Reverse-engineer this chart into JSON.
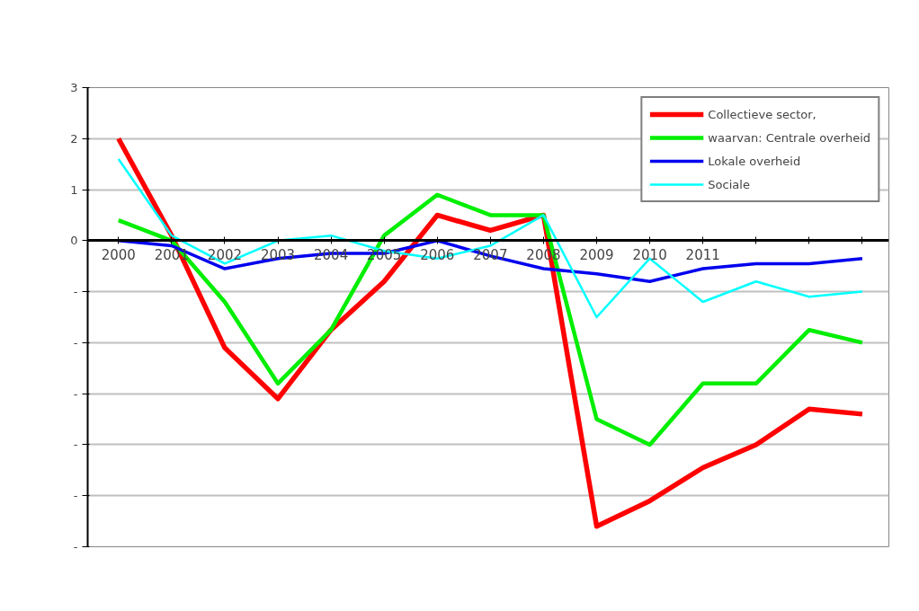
{
  "chart_data": {
    "type": "line",
    "categories": [
      "2000",
      "2001",
      "2002",
      "2003",
      "2004",
      "2005",
      "2006",
      "2007",
      "2008",
      "2009",
      "2010",
      "2011",
      null,
      null,
      null
    ],
    "series": [
      {
        "name": "Collectieve sector,",
        "color": "#ff0000",
        "values": [
          2.0,
          0.1,
          -2.1,
          -3.1,
          -1.75,
          -0.8,
          0.5,
          0.2,
          0.5,
          -5.6,
          -5.1,
          -4.45,
          -4.0,
          -3.3,
          -3.4
        ]
      },
      {
        "name": "waarvan: Centrale overheid",
        "color": "#00ee00",
        "values": [
          0.4,
          0.0,
          -1.2,
          -2.8,
          -1.75,
          0.1,
          0.9,
          0.5,
          0.5,
          -3.5,
          -4.0,
          -2.8,
          -2.8,
          -1.75,
          -2.0
        ]
      },
      {
        "name": "Lokale overheid",
        "color": "#0000ee",
        "values": [
          0.0,
          -0.1,
          -0.55,
          -0.35,
          -0.25,
          -0.25,
          0.0,
          -0.3,
          -0.55,
          -0.65,
          -0.8,
          -0.55,
          -0.45,
          -0.45,
          -0.35
        ]
      },
      {
        "name": "Sociale",
        "color": "#00ffff",
        "values": [
          1.6,
          0.1,
          -0.45,
          0.0,
          0.1,
          -0.2,
          -0.35,
          -0.1,
          0.5,
          -1.5,
          -0.35,
          -1.2,
          -0.8,
          -1.1,
          -1.0
        ]
      }
    ],
    "ylim": [
      -6,
      3
    ],
    "yticks": [
      3,
      2,
      1,
      0,
      {
        "value": -1,
        "label": "-"
      },
      {
        "value": -2,
        "label": "-"
      },
      {
        "value": -3,
        "label": "-"
      },
      {
        "value": -4,
        "label": "-"
      },
      {
        "value": -5,
        "label": "-"
      },
      {
        "value": -6,
        "label": "-"
      }
    ],
    "grid": "y",
    "legend": "top right",
    "marker": "none",
    "line_style": "solid"
  }
}
